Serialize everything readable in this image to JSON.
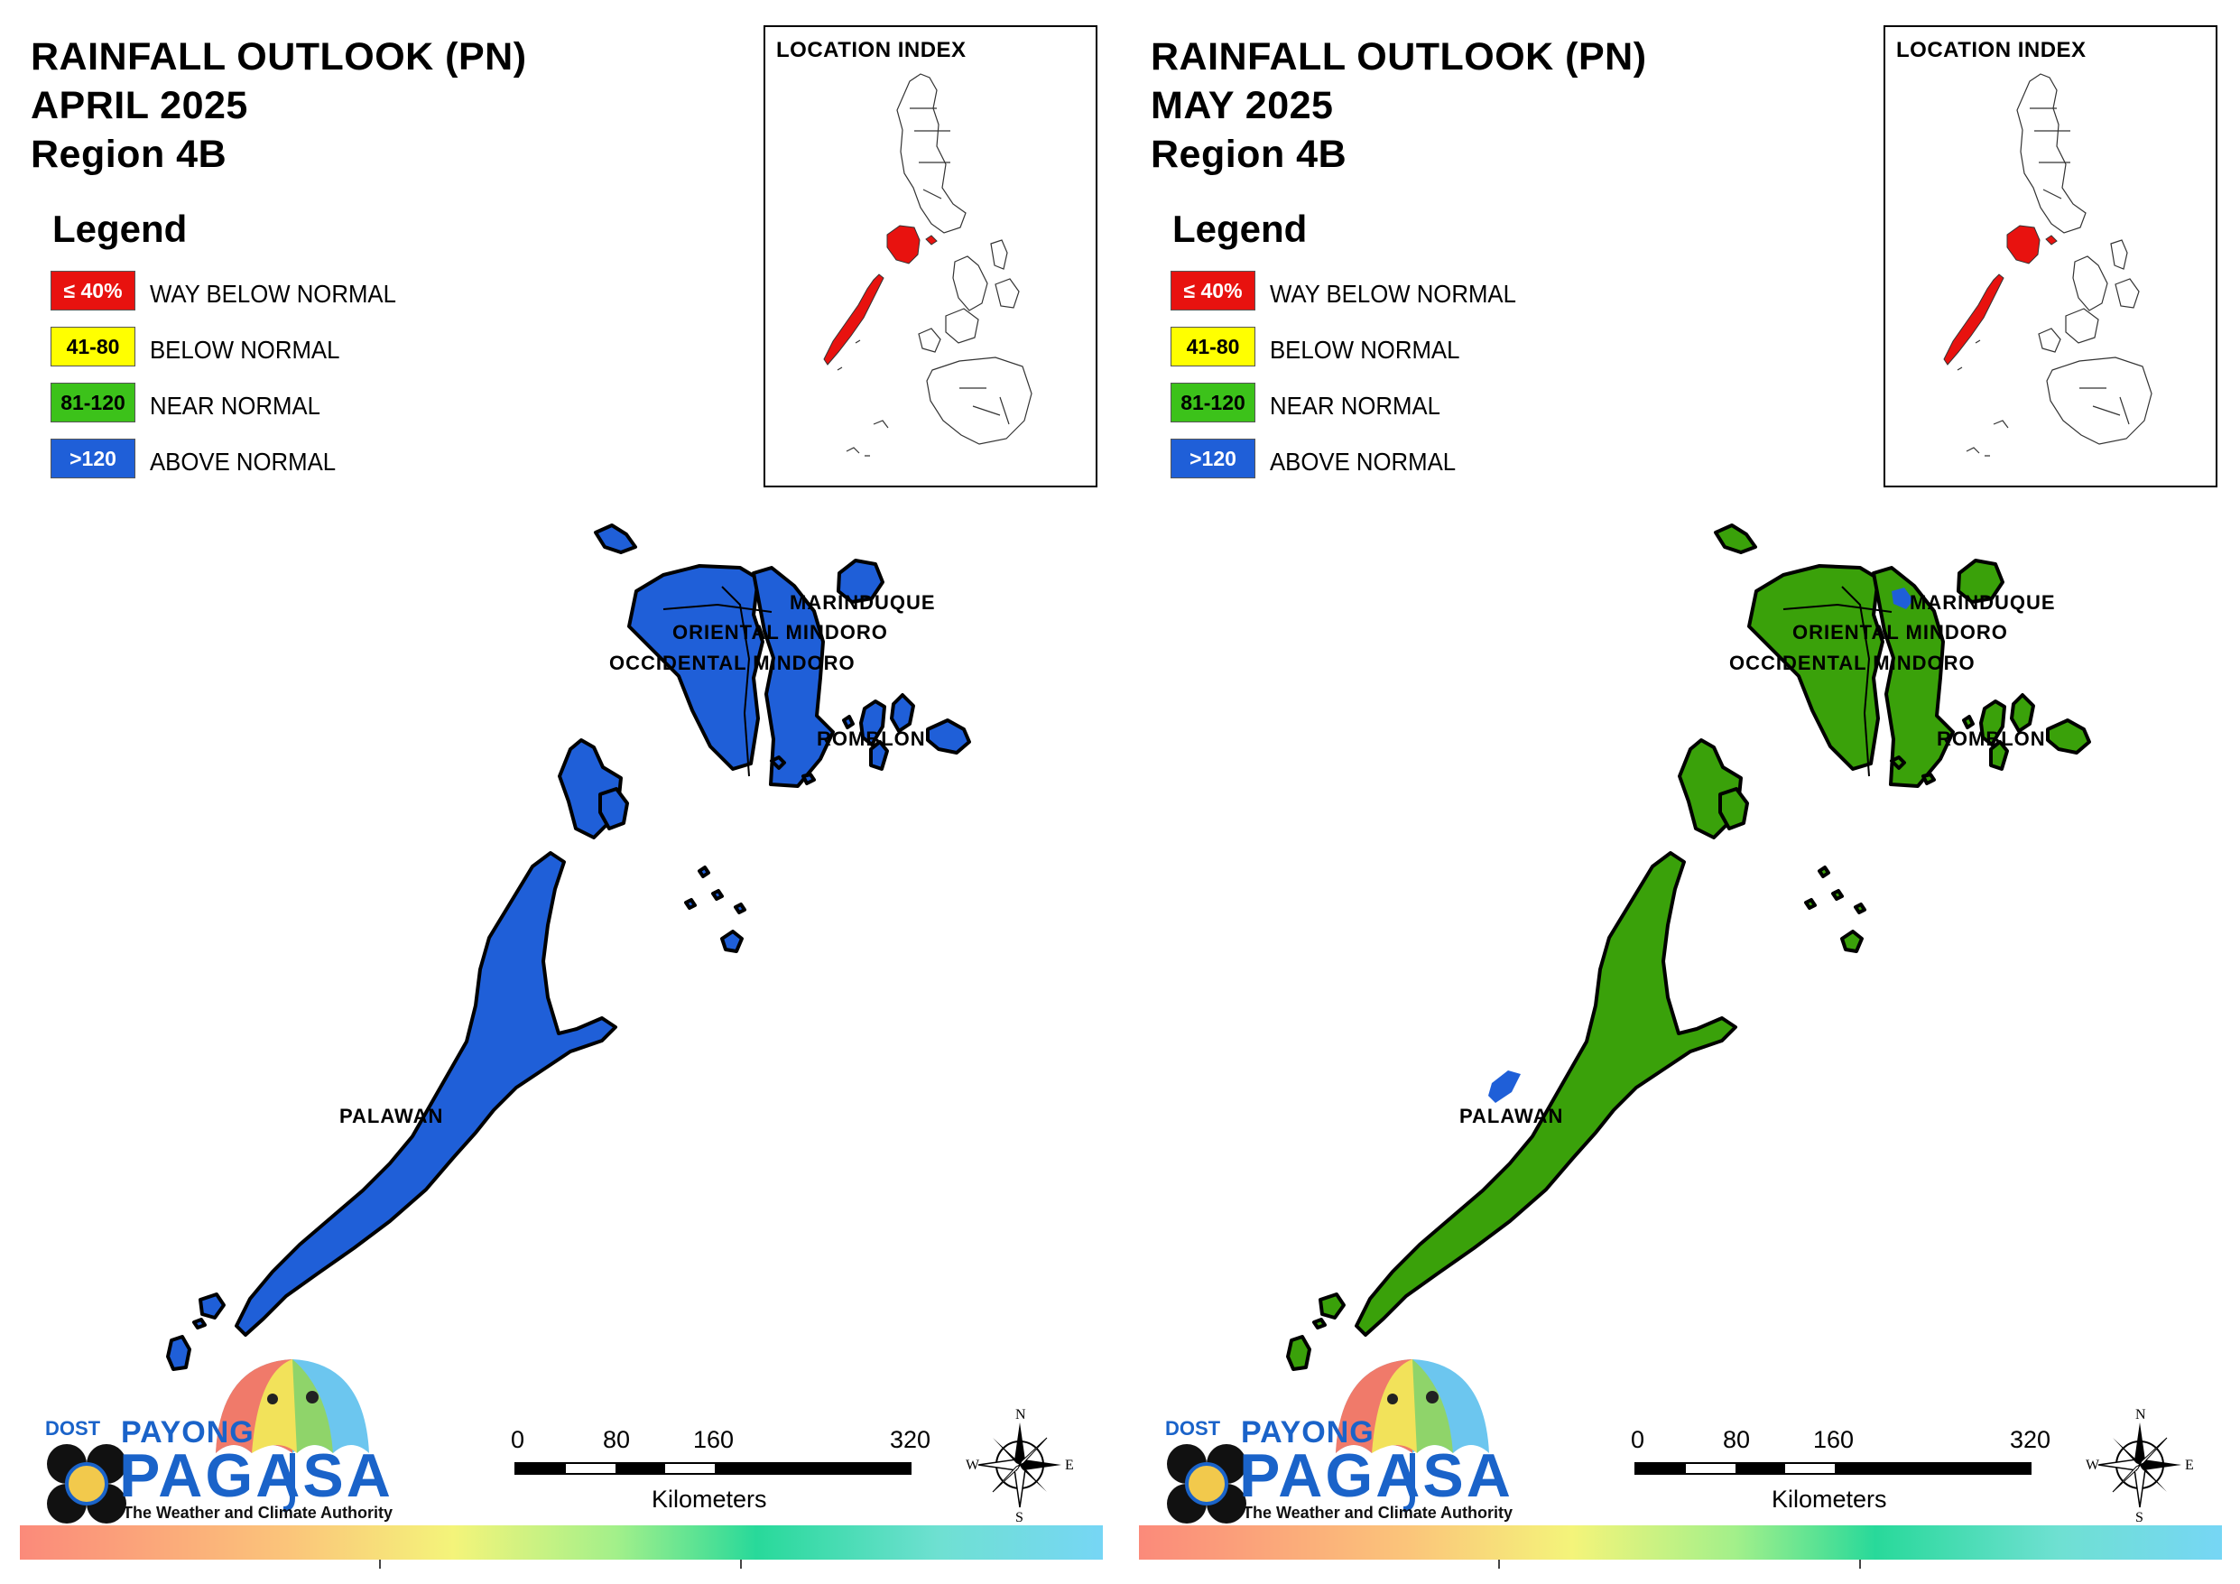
{
  "panels": [
    {
      "title_line1": "RAINFALL OUTLOOK (PN)",
      "title_line2": "APRIL 2025",
      "title_line3": "Region 4B",
      "map_fill_color": "#1f5fd8",
      "region_categories": {
        "OCCIDENTAL MINDORO": "ABOVE NORMAL",
        "ORIENTAL MINDORO": "ABOVE NORMAL",
        "MARINDUQUE": "ABOVE NORMAL",
        "ROMBLON": "ABOVE NORMAL",
        "PALAWAN": "ABOVE NORMAL"
      }
    },
    {
      "title_line1": "RAINFALL OUTLOOK (PN)",
      "title_line2": "MAY 2025",
      "title_line3": "Region 4B",
      "map_fill_color": "#3aa10a",
      "region_categories": {
        "OCCIDENTAL MINDORO": "NEAR NORMAL",
        "ORIENTAL MINDORO": "NEAR NORMAL",
        "MARINDUQUE": "NEAR NORMAL",
        "ROMBLON": "NEAR NORMAL",
        "PALAWAN": "NEAR NORMAL"
      }
    }
  ],
  "legend": {
    "title": "Legend",
    "items": [
      {
        "range": "≤ 40%",
        "label": "WAY BELOW NORMAL",
        "color": "#e8120f",
        "text_color": "#ffffff"
      },
      {
        "range": "41-80",
        "label": "BELOW NORMAL",
        "color": "#ffff00",
        "text_color": "#000000"
      },
      {
        "range": "81-120",
        "label": "NEAR NORMAL",
        "color": "#3cc21a",
        "text_color": "#000000"
      },
      {
        "range": ">120",
        "label": "ABOVE NORMAL",
        "color": "#1f5fd8",
        "text_color": "#ffffff"
      }
    ]
  },
  "location_index": {
    "title": "LOCATION INDEX",
    "highlight_color": "#e8120f"
  },
  "province_labels": {
    "marinduque": "MARINDUQUE",
    "oriental_mindoro": "ORIENTAL MINDORO",
    "occidental_mindoro": "OCCIDENTAL MINDORO",
    "romblon": "ROMBLON",
    "palawan": "PALAWAN"
  },
  "scale_bar": {
    "labels": [
      "0",
      "80",
      "160",
      "320"
    ],
    "units": "Kilometers"
  },
  "compass": {
    "n": "N",
    "e": "E",
    "s": "S",
    "w": "W"
  },
  "logo": {
    "dost": "DOST",
    "payong": "PAYONG",
    "pagasa": "PAGASA",
    "tagline": "The Weather and Climate Authority"
  }
}
